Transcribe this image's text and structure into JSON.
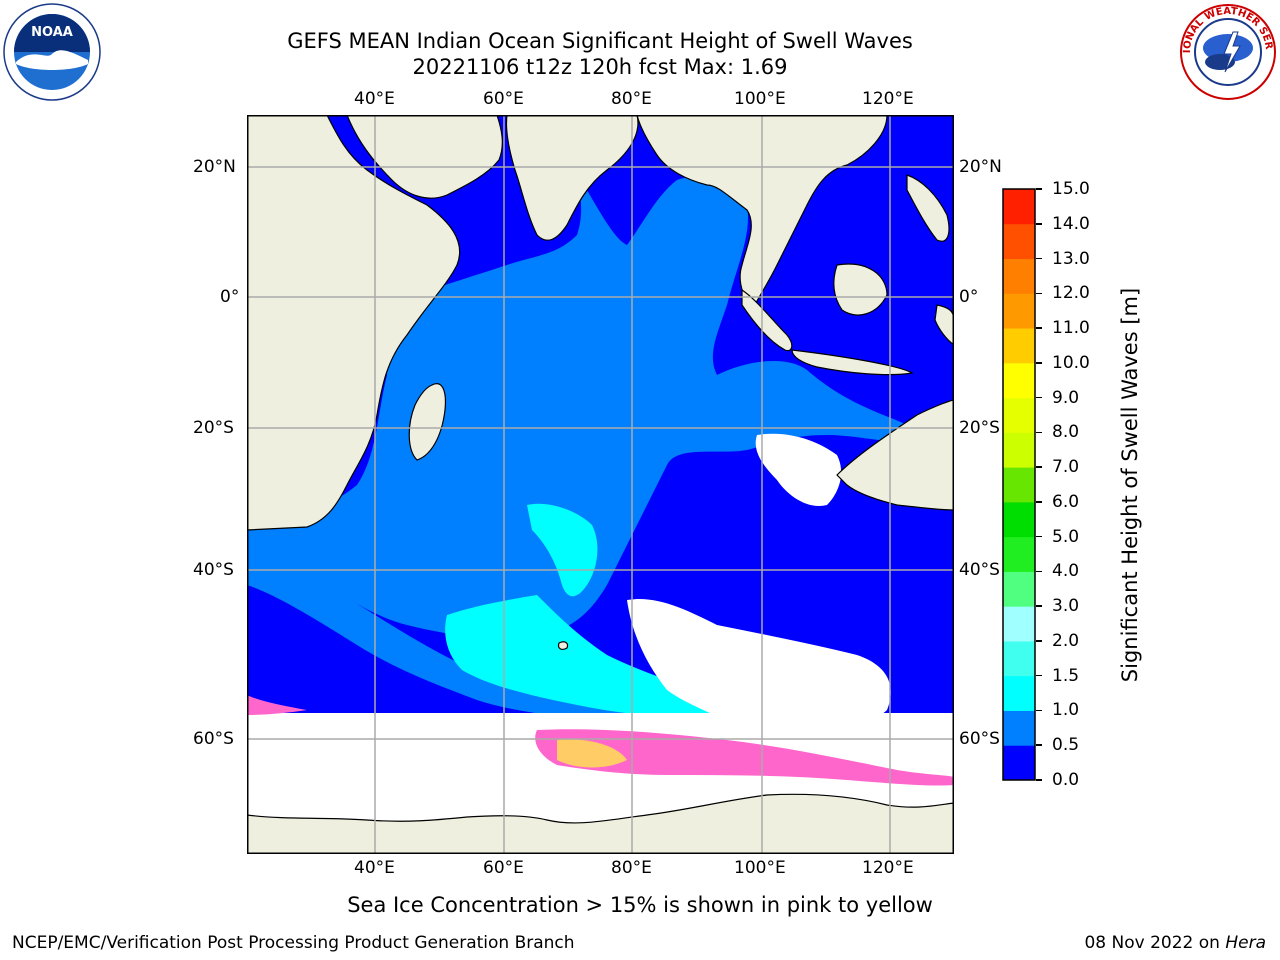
{
  "header": {
    "title_line1": "GEFS MEAN Indian Ocean Significant Height of Swell Waves",
    "title_line2": "20221106 t12z 120h fcst   Max: 1.69"
  },
  "logos": {
    "left": "noaa-logo",
    "left_text": "NOAA",
    "right": "national-weather-service-logo",
    "right_text": "NATIONAL WEATHER SERVICE"
  },
  "map": {
    "lon_ticks": [
      "40°E",
      "60°E",
      "80°E",
      "100°E",
      "120°E"
    ],
    "lat_ticks_left": [
      "20°N",
      "0°",
      "20°S",
      "40°S",
      "60°S"
    ],
    "lat_ticks_right": [
      "20°N",
      "0°",
      "20°S",
      "40°S",
      "60°S"
    ],
    "lon_range": [
      20,
      129
    ],
    "lat_range": [
      -73,
      27
    ],
    "colors": {
      "land": "#efefdf",
      "no_data": "#ffffff",
      "swell_0_0.5": "#0000ff",
      "swell_0.5_1.0": "#0080ff",
      "swell_1.0_1.5": "#00ffff",
      "sea_ice": "#ff66cc"
    }
  },
  "colorbar": {
    "label": "Significant Height of Swell Waves [m]",
    "ticks": [
      "0.0",
      "0.5",
      "1.0",
      "1.5",
      "2.0",
      "3.0",
      "4.0",
      "5.0",
      "6.0",
      "7.0",
      "8.0",
      "9.0",
      "10.0",
      "11.0",
      "12.0",
      "13.0",
      "14.0",
      "15.0"
    ],
    "colors": [
      "#0000ff",
      "#0080ff",
      "#00ffff",
      "#40ffee",
      "#a0ffff",
      "#50ff80",
      "#20ee20",
      "#00dd00",
      "#66e600",
      "#ccff00",
      "#e6ff00",
      "#ffff00",
      "#ffcc00",
      "#ff9900",
      "#ff8000",
      "#ff5000",
      "#ff2000"
    ]
  },
  "footer": {
    "note": "Sea Ice Concentration > 15% is shown in pink to yellow",
    "branch": "NCEP/EMC/Verification Post Processing Product Generation Branch",
    "date": "08 Nov 2022 on ",
    "system": "Hera"
  }
}
